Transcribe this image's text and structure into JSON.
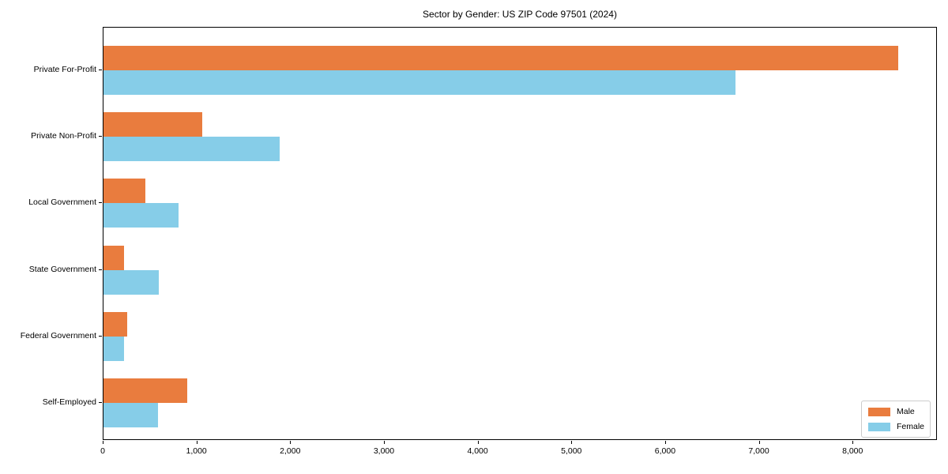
{
  "figure": {
    "background": "#ffffff",
    "axis_color": "#000000"
  },
  "chart_data": {
    "type": "bar",
    "orientation": "horizontal",
    "title": "Sector by Gender: US ZIP Code 97501 (2024)",
    "categories": [
      "Private For-Profit",
      "Private Non-Profit",
      "Local Government",
      "State Government",
      "Federal Government",
      "Self-Employed"
    ],
    "series": [
      {
        "name": "Male",
        "color": "#e97c3e",
        "values": [
          8480,
          1050,
          450,
          220,
          250,
          890
        ]
      },
      {
        "name": "Female",
        "color": "#86cde8",
        "values": [
          6740,
          1880,
          800,
          590,
          220,
          580
        ]
      }
    ],
    "xlabel": "",
    "ylabel": "",
    "xlim": [
      0,
      8900
    ],
    "xticks": [
      0,
      1000,
      2000,
      3000,
      4000,
      5000,
      6000,
      7000,
      8000
    ],
    "xtick_labels": [
      "0",
      "1,000",
      "2,000",
      "3,000",
      "4,000",
      "5,000",
      "6,000",
      "7,000",
      "8,000"
    ],
    "grid": false,
    "legend": {
      "position": "lower right",
      "entries": [
        "Male",
        "Female"
      ]
    }
  }
}
